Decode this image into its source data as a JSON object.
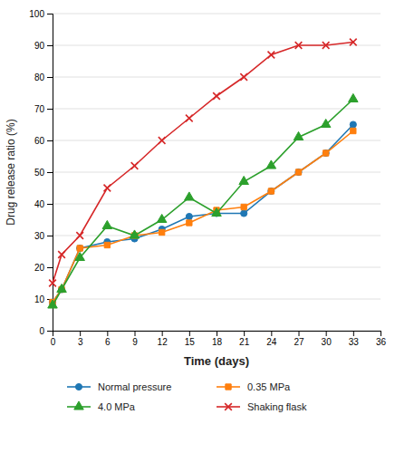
{
  "chart_data": {
    "type": "line",
    "xlabel": "Time (days)",
    "ylabel": "Drug release ratio (%)",
    "x": [
      0,
      1,
      3,
      6,
      9,
      12,
      15,
      18,
      21,
      24,
      27,
      30,
      33
    ],
    "series": [
      {
        "name": "Normal pressure",
        "marker": "circle",
        "values": [
          9,
          13,
          26,
          28,
          29,
          32,
          36,
          37,
          37,
          44,
          50,
          56,
          65
        ]
      },
      {
        "name": "0.35 MPa",
        "marker": "square",
        "values": [
          9,
          13,
          26,
          27,
          30,
          31,
          34,
          38,
          39,
          44,
          50,
          56,
          63
        ]
      },
      {
        "name": "4.0 MPa",
        "marker": "triangle",
        "values": [
          8,
          13,
          23,
          33,
          30,
          35,
          42,
          37,
          47,
          52,
          61,
          65,
          73
        ]
      },
      {
        "name": "Shaking flask",
        "marker": "x",
        "values": [
          15,
          24,
          30,
          45,
          52,
          60,
          67,
          74,
          80,
          87,
          90,
          90,
          91
        ]
      }
    ],
    "xlim": [
      0,
      36
    ],
    "ylim": [
      0,
      100
    ],
    "xticks": [
      0,
      3,
      6,
      9,
      12,
      15,
      18,
      21,
      24,
      27,
      30,
      33,
      36
    ],
    "yticks": [
      0,
      10,
      20,
      30,
      40,
      50,
      60,
      70,
      80,
      90,
      100
    ],
    "grid": "y",
    "legend": "bottom"
  }
}
